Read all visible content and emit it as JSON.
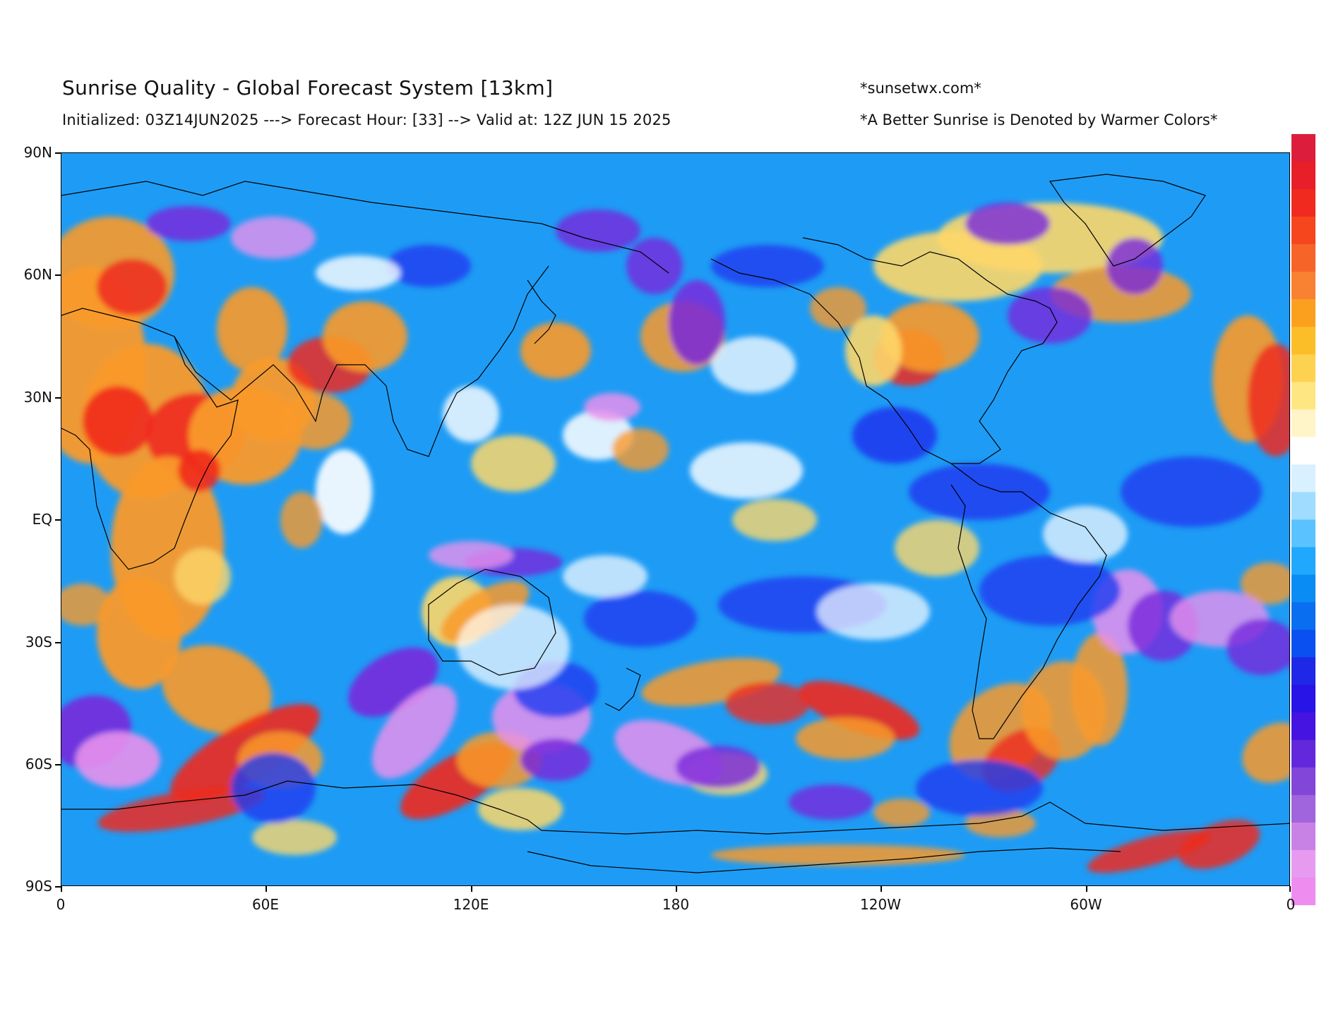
{
  "header": {
    "title": "Sunrise Quality - Global Forecast System [13km]",
    "subtitle": "Initialized: 03Z14JUN2025 ---> Forecast Hour: [33] --> Valid at: 12Z JUN 15 2025",
    "site": "*sunsetwx.com*",
    "note": "*A Better Sunrise is Denoted by Warmer Colors*"
  },
  "axes": {
    "y_ticks": [
      "90N",
      "60N",
      "30N",
      "EQ",
      "30S",
      "60S",
      "90S"
    ],
    "x_ticks": [
      "0",
      "60E",
      "120E",
      "180",
      "120W",
      "60W",
      "0"
    ]
  },
  "colorbar": {
    "colors": [
      "#dc1e3c",
      "#e81e28",
      "#f02a1e",
      "#f5461e",
      "#f76428",
      "#f98232",
      "#fba01e",
      "#fcbe28",
      "#fdd250",
      "#fee682",
      "#fff5c8",
      "#ffffff",
      "#d8f0ff",
      "#a0dcff",
      "#5ac3ff",
      "#20a8ff",
      "#0a8cf5",
      "#0a6ef0",
      "#0a50f0",
      "#1e28e6",
      "#2814e6",
      "#4614e0",
      "#6428dc",
      "#8246d8",
      "#a064dc",
      "#c882e6",
      "#e69bf0",
      "#ee8cf0"
    ]
  },
  "palette": {
    "ocean": "#1e9cf5",
    "deep_blue": "#1e3cf0",
    "purple": "#7828dc",
    "violet": "#e891ec",
    "white": "#ffffff",
    "yellow": "#fdd76a",
    "orange": "#f99a2a",
    "red": "#ef2a1e",
    "coast": "#000000"
  }
}
